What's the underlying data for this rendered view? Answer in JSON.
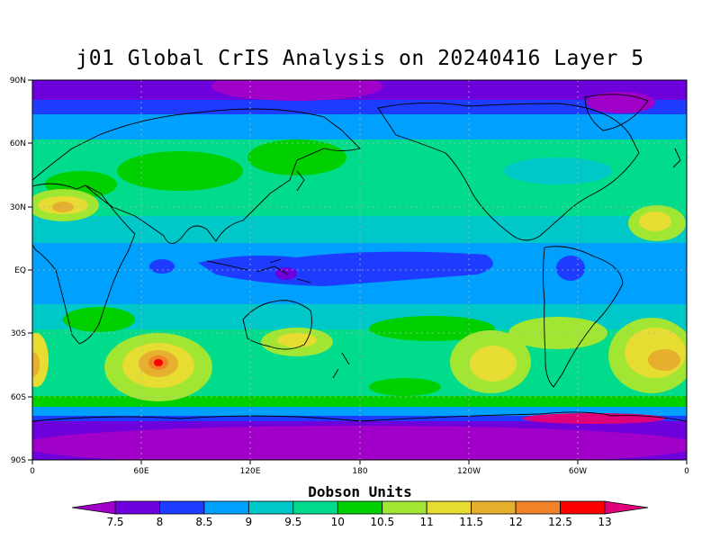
{
  "title": "j01 Global CrIS Analysis on 20240416 Layer 5",
  "lat_labels": [
    "90N",
    "60N",
    "30N",
    "EQ",
    "30S",
    "60S",
    "90S"
  ],
  "lon_labels": [
    "0",
    "60E",
    "120E",
    "180",
    "120W",
    "60W",
    "0"
  ],
  "colorbar": {
    "title": "Dobson Units",
    "levels": [
      "7.5",
      "8",
      "8.5",
      "9",
      "9.5",
      "10",
      "10.5",
      "11",
      "11.5",
      "12",
      "12.5",
      "13"
    ],
    "colors": [
      "#a000c8",
      "#6e00dc",
      "#1e3cff",
      "#00a0ff",
      "#00c8c8",
      "#00dc8c",
      "#00d000",
      "#a0e632",
      "#e6dc32",
      "#e6af2d",
      "#f08228",
      "#fa0000",
      "#e0007a"
    ]
  }
}
